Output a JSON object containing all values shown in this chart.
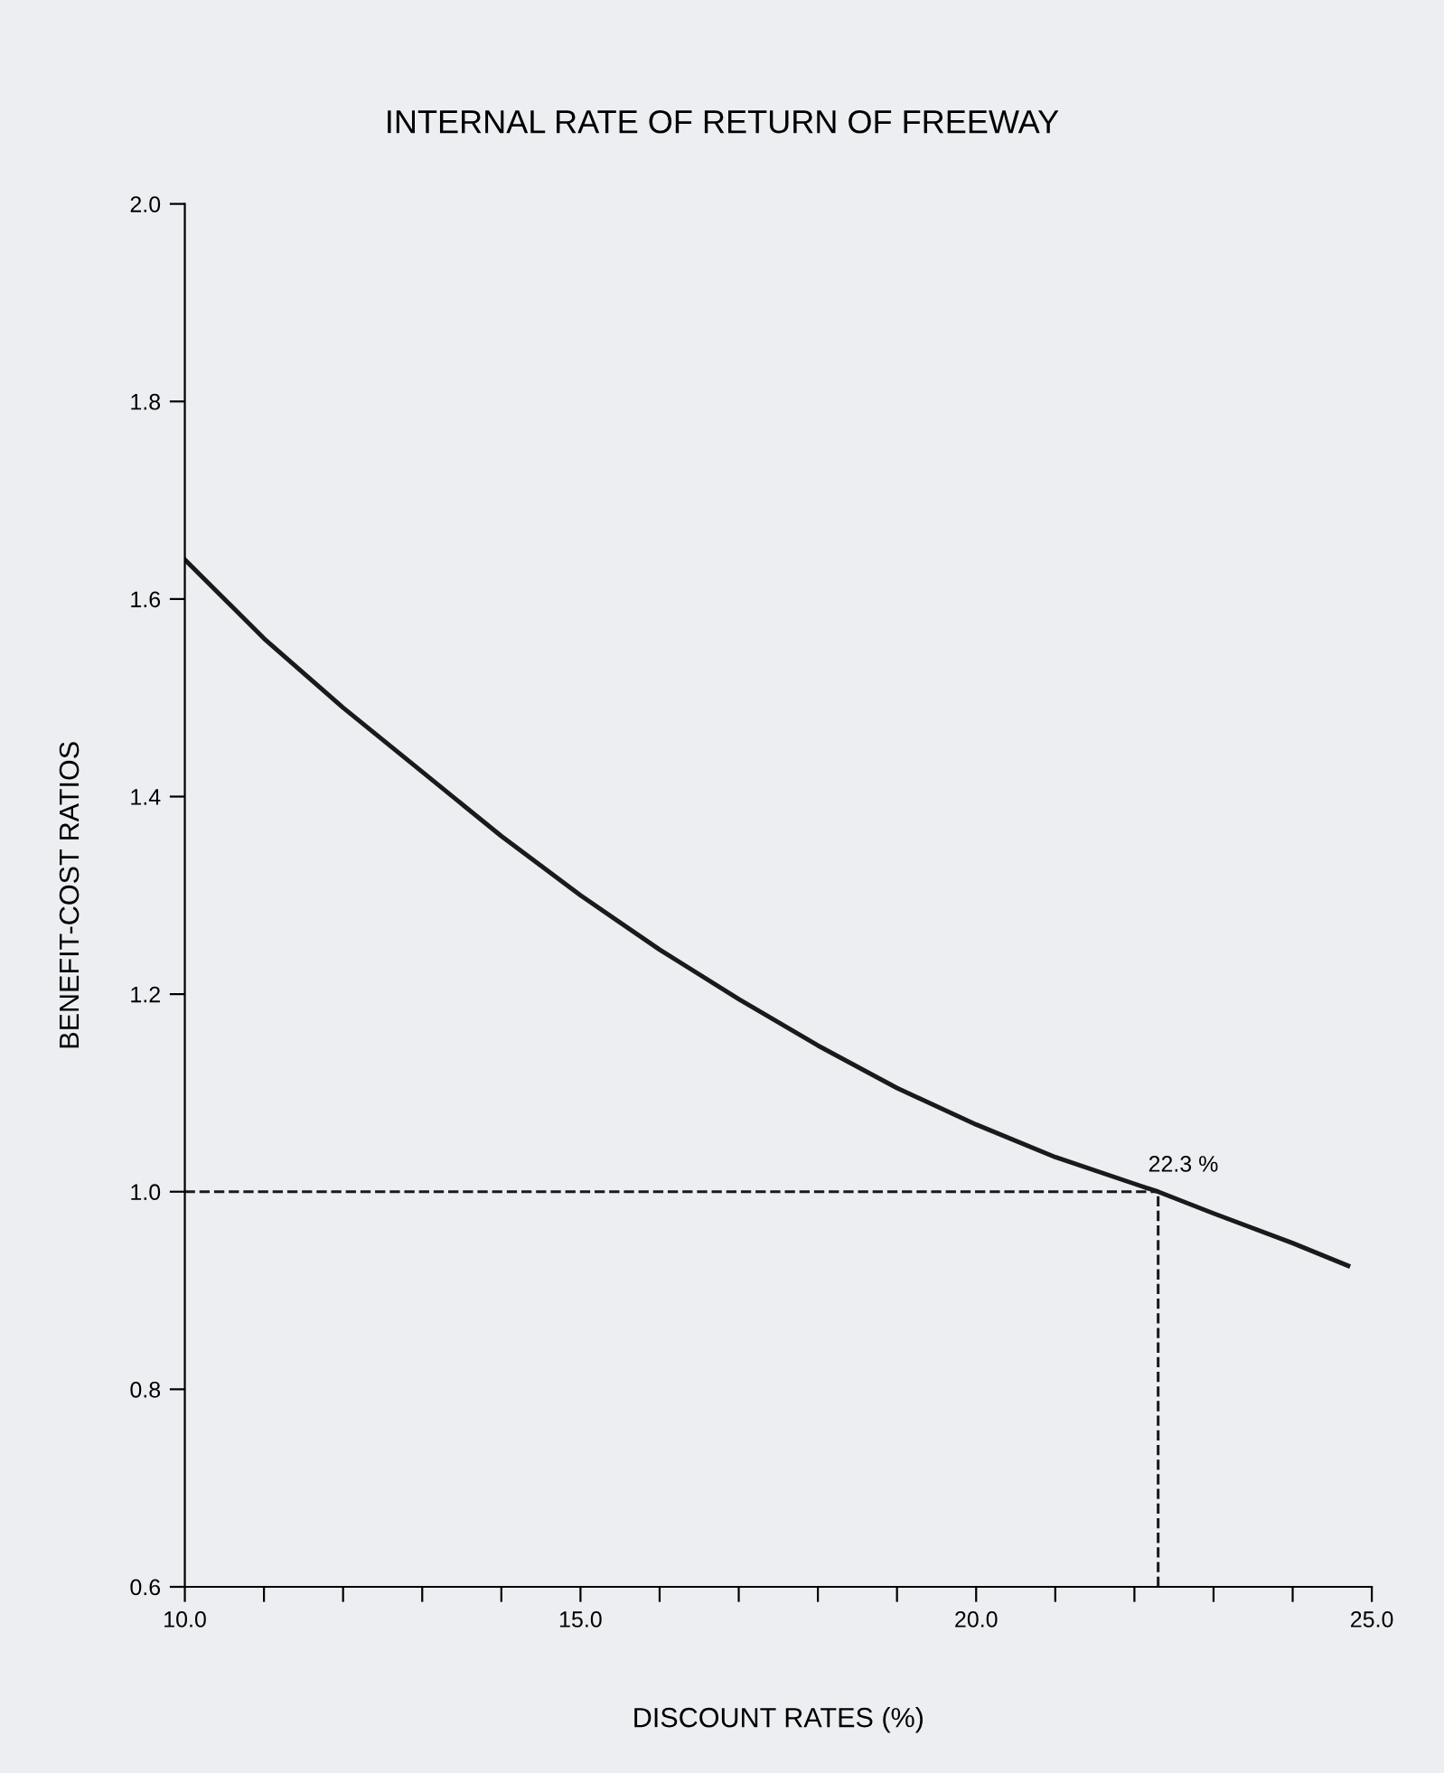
{
  "chart_data": {
    "type": "line",
    "title": "INTERNAL RATE OF RETURN OF FREEWAY",
    "xlabel": "DISCOUNT RATES (%)",
    "ylabel": "BENEFIT-COST RATIOS",
    "x": [
      10,
      11,
      12,
      13,
      14,
      15,
      16,
      17,
      18,
      19,
      20,
      21,
      22,
      22.3,
      23,
      24,
      24.7
    ],
    "series": [
      {
        "color": "#1a1a1a",
        "values": [
          1.64,
          1.56,
          1.49,
          1.425,
          1.36,
          1.3,
          1.245,
          1.195,
          1.148,
          1.105,
          1.068,
          1.035,
          1.008,
          1.0,
          0.978,
          0.948,
          0.925
        ]
      }
    ],
    "xlim": [
      10,
      25
    ],
    "ylim": [
      0.6,
      2.0
    ],
    "xticks": [
      {
        "value": 10,
        "label": "10.0"
      },
      {
        "value": 11,
        "label": null
      },
      {
        "value": 12,
        "label": null
      },
      {
        "value": 13,
        "label": null
      },
      {
        "value": 14,
        "label": null
      },
      {
        "value": 15,
        "label": "15.0"
      },
      {
        "value": 16,
        "label": null
      },
      {
        "value": 17,
        "label": null
      },
      {
        "value": 18,
        "label": null
      },
      {
        "value": 19,
        "label": null
      },
      {
        "value": 20,
        "label": "20.0"
      },
      {
        "value": 21,
        "label": null
      },
      {
        "value": 22,
        "label": null
      },
      {
        "value": 23,
        "label": null
      },
      {
        "value": 24,
        "label": null
      },
      {
        "value": 25,
        "label": "25.0"
      }
    ],
    "yticks": [
      {
        "value": 0.6,
        "label": "0.6"
      },
      {
        "value": 0.8,
        "label": "0.8"
      },
      {
        "value": 1.0,
        "label": "1.0"
      },
      {
        "value": 1.2,
        "label": "1.2"
      },
      {
        "value": 1.4,
        "label": "1.4"
      },
      {
        "value": 1.6,
        "label": "1.6"
      },
      {
        "value": 1.8,
        "label": "1.8"
      },
      {
        "value": 2.0,
        "label": "2.0"
      }
    ],
    "ref_lines": [
      {
        "axis": "y",
        "value": 1.0,
        "line_style": "dashed",
        "color": "#1a1a1a"
      },
      {
        "axis": "x",
        "value": 22.3,
        "line_style": "dashed",
        "color": "#1a1a1a"
      }
    ],
    "annotations": [
      {
        "text": "22.3 %",
        "x": 22.3,
        "y": 1.0
      }
    ],
    "grid": false,
    "legend": false,
    "marker": "none",
    "line_style": "solid"
  }
}
